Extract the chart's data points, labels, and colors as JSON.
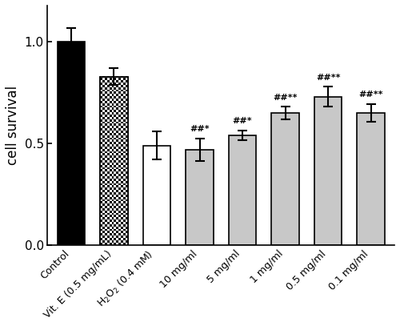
{
  "categories": [
    "Control",
    "Vit. E (0.5 mg/mL)",
    "H$_2$O$_2$ (0.4 mM)",
    "10 mg/ml",
    "5 mg/ml",
    "1 mg/ml",
    "0.5 mg/ml",
    "0.1 mg/ml"
  ],
  "values": [
    1.0,
    0.83,
    0.49,
    0.47,
    0.54,
    0.65,
    0.73,
    0.65
  ],
  "errors": [
    0.07,
    0.04,
    0.07,
    0.055,
    0.025,
    0.03,
    0.05,
    0.045
  ],
  "bar_colors": [
    "black",
    "checkerboard",
    "white",
    "lightgray",
    "lightgray",
    "lightgray",
    "lightgray",
    "lightgray"
  ],
  "ylabel": "cell survival",
  "ylim": [
    0.0,
    1.18
  ],
  "yticks": [
    0.0,
    0.5,
    1.0
  ],
  "annotations": [
    "",
    "",
    "",
    "##*",
    "##*",
    "##**",
    "##**",
    "##**"
  ],
  "annotation_fontsize": 8,
  "gray_color": "#c8c8c8",
  "figsize": [
    5.0,
    4.07
  ],
  "dpi": 100,
  "bar_width": 0.65,
  "checker_ncells": 12
}
